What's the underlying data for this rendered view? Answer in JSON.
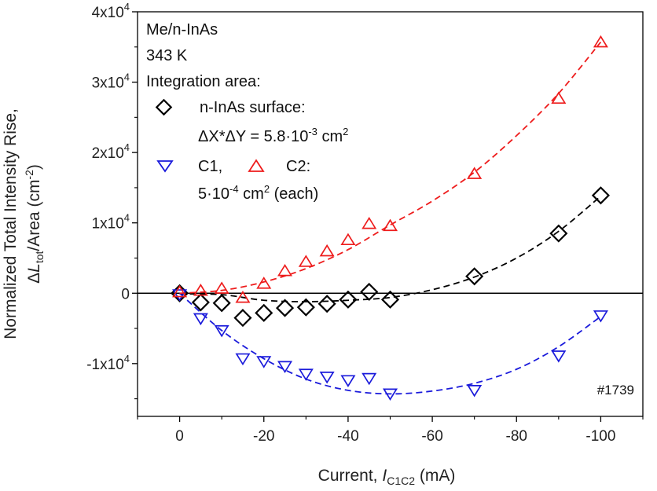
{
  "chart_data": {
    "type": "scatter",
    "title": "",
    "xlabel": {
      "prefix": "Current, ",
      "var": "I",
      "sub": "C1C2",
      "suffix": " (mA)"
    },
    "ylabel": {
      "line1": "Normalized Total Intensity Rise,",
      "line2": {
        "delta": "Δ",
        "var": "L",
        "sub": "tot",
        "mid": "/Area (cm",
        "sup": "-2",
        "end": ")"
      }
    },
    "xlim": [
      10,
      -110
    ],
    "ylim": [
      -17500,
      40000
    ],
    "xticks": [
      {
        "value": 0,
        "label": "0"
      },
      {
        "value": -20,
        "label": "-20"
      },
      {
        "value": -40,
        "label": "-40"
      },
      {
        "value": -60,
        "label": "-60"
      },
      {
        "value": -80,
        "label": "-80"
      },
      {
        "value": -100,
        "label": "-100"
      }
    ],
    "yticks": [
      {
        "value": -10000,
        "base": "-1x10",
        "exp": "4"
      },
      {
        "value": 0,
        "base": "0",
        "exp": ""
      },
      {
        "value": 10000,
        "base": "1x10",
        "exp": "4"
      },
      {
        "value": 20000,
        "base": "2x10",
        "exp": "4"
      },
      {
        "value": 30000,
        "base": "3x10",
        "exp": "4"
      },
      {
        "value": 40000,
        "base": "4x10",
        "exp": "4"
      }
    ],
    "zero_line": true,
    "series": [
      {
        "name": "n-InAs surface",
        "marker": "diamond",
        "color": "#000000",
        "x": [
          0,
          -5,
          -10,
          -15,
          -20,
          -25,
          -30,
          -35,
          -40,
          -45,
          -50,
          -70,
          -90,
          -100
        ],
        "y": [
          0,
          -1300,
          -1400,
          -3500,
          -2800,
          -2100,
          -2000,
          -1500,
          -900,
          200,
          -900,
          2400,
          8500,
          13900
        ],
        "fit": {
          "x": [
            0,
            -10,
            -20,
            -30,
            -40,
            -50,
            -60,
            -70,
            -80,
            -90,
            -100
          ],
          "y": [
            -100,
            -200,
            -1000,
            -1200,
            -1000,
            -600,
            500,
            2300,
            5000,
            8800,
            13800
          ]
        }
      },
      {
        "name": "C1",
        "marker": "triangle-down",
        "color": "#1a1adb",
        "x": [
          0,
          -5,
          -10,
          -15,
          -20,
          -25,
          -30,
          -35,
          -40,
          -45,
          -50,
          -70,
          -90,
          -100
        ],
        "y": [
          -200,
          -3600,
          -5300,
          -9300,
          -9700,
          -10400,
          -11500,
          -11900,
          -12400,
          -12100,
          -14300,
          -13800,
          -8900,
          -3200
        ],
        "fit": {
          "x": [
            0,
            -10,
            -20,
            -30,
            -40,
            -50,
            -60,
            -70,
            -80,
            -90,
            -100
          ],
          "y": [
            0,
            -5300,
            -9300,
            -12200,
            -13800,
            -14300,
            -13900,
            -12800,
            -10800,
            -7600,
            -3300
          ]
        }
      },
      {
        "name": "C2",
        "marker": "triangle-up",
        "color": "#ee1c1c",
        "x": [
          0,
          -5,
          -10,
          -15,
          -20,
          -25,
          -30,
          -35,
          -40,
          -45,
          -50,
          -70,
          -90,
          -100
        ],
        "y": [
          200,
          400,
          700,
          -600,
          1400,
          3200,
          4500,
          6000,
          7600,
          9900,
          9600,
          17000,
          27700,
          35700
        ],
        "fit": {
          "x": [
            0,
            -10,
            -20,
            -30,
            -40,
            -50,
            -60,
            -70,
            -80,
            -90,
            -100
          ],
          "y": [
            0,
            400,
            1600,
            3500,
            6200,
            9700,
            13100,
            17200,
            22400,
            28400,
            35700
          ]
        }
      }
    ],
    "legend": {
      "position": "top-left",
      "header_lines": [
        "Me/n-InAs",
        "343 K",
        "Integration area:"
      ],
      "nInAs_label": "n-InAs surface:",
      "nInAs_area": {
        "text": "ΔX*ΔY = 5.8·10",
        "sup": "-3",
        "unit": " cm",
        "unit_sup": "2"
      },
      "c1_label": "C1,",
      "c2_label": "C2:",
      "c_area": {
        "text": "5·10",
        "sup": "-4",
        "unit": " cm",
        "unit_sup": "2",
        "end": " (each)"
      }
    },
    "annotation": "#1739"
  }
}
